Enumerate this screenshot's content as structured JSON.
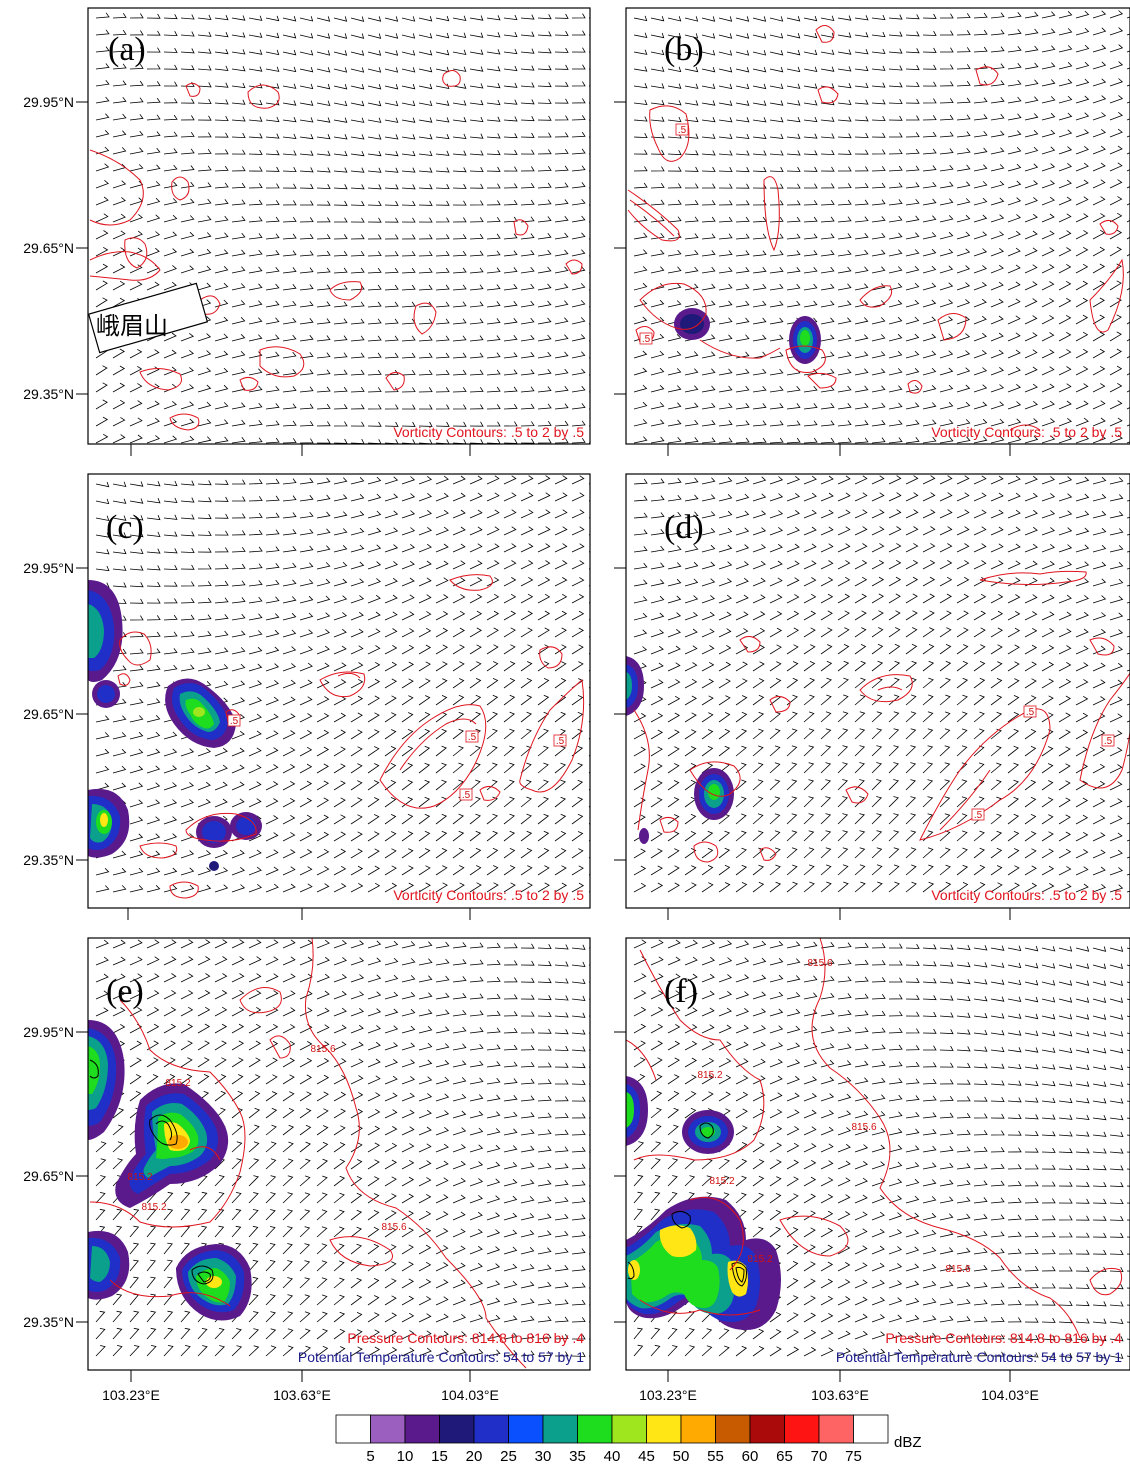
{
  "chart_data": {
    "type": "map-panels",
    "lat_ticks": [
      "29.95°N",
      "29.65°N",
      "29.35°N"
    ],
    "lon_ticks": [
      "103.23°E",
      "103.63°E",
      "104.03°E"
    ],
    "colors": {
      "vorticity_contour": "#e0141e",
      "pressure_contour": "#e0141e",
      "theta_contour": "#000000",
      "wind_barb": "#000000"
    },
    "colorbar": {
      "levels": [
        "5",
        "10",
        "15",
        "20",
        "25",
        "30",
        "35",
        "40",
        "45",
        "50",
        "55",
        "60",
        "65",
        "70",
        "75"
      ],
      "unit": "dBZ",
      "colors": [
        "#ffffff",
        "#9b5fc0",
        "#5a1a8c",
        "#1f1a7a",
        "#1f2fc8",
        "#0a50ff",
        "#0aa08c",
        "#1edc1e",
        "#a0e61e",
        "#ffe614",
        "#ffaa00",
        "#c85a00",
        "#aa0a0a",
        "#ff1414",
        "#ff6464",
        "#ffffff"
      ]
    },
    "panels": [
      {
        "id": "a",
        "letter": "(a)",
        "notes": [
          "Vorticity Contours: .5 to 2 by .5"
        ],
        "place_label": "峨眉山",
        "contour_labels": []
      },
      {
        "id": "b",
        "letter": "(b)",
        "notes": [
          "Vorticity Contours: .5 to 2 by .5"
        ],
        "contour_labels": [
          ".5",
          ".5"
        ]
      },
      {
        "id": "c",
        "letter": "(c)",
        "notes": [
          "Vorticity Contours: .5 to 2 by .5"
        ],
        "contour_labels": [
          ".5",
          ".5",
          ".5",
          ".5"
        ]
      },
      {
        "id": "d",
        "letter": "(d)",
        "notes": [
          "Vorticity Contours: .5 to 2 by .5"
        ],
        "contour_labels": [
          ".5",
          ".5",
          ".5"
        ]
      },
      {
        "id": "e",
        "letter": "(e)",
        "notes": [
          "Pressure Contours: 814.8 to 816 by .4",
          "Potential Temperature  Contours: 54 to 57 by 1"
        ],
        "contour_labels": [
          "815.6",
          "815.2",
          "815.2",
          "815.2",
          "815.6"
        ]
      },
      {
        "id": "f",
        "letter": "(f)",
        "notes": [
          "Pressure Contours: 814.8 to 816 by .4",
          "Potential Temperature  Contours: 54 to 57 by 1"
        ],
        "contour_labels": [
          "815.6",
          "815.2",
          "815.6",
          "815.2",
          "815.2",
          "815.6"
        ]
      }
    ]
  }
}
